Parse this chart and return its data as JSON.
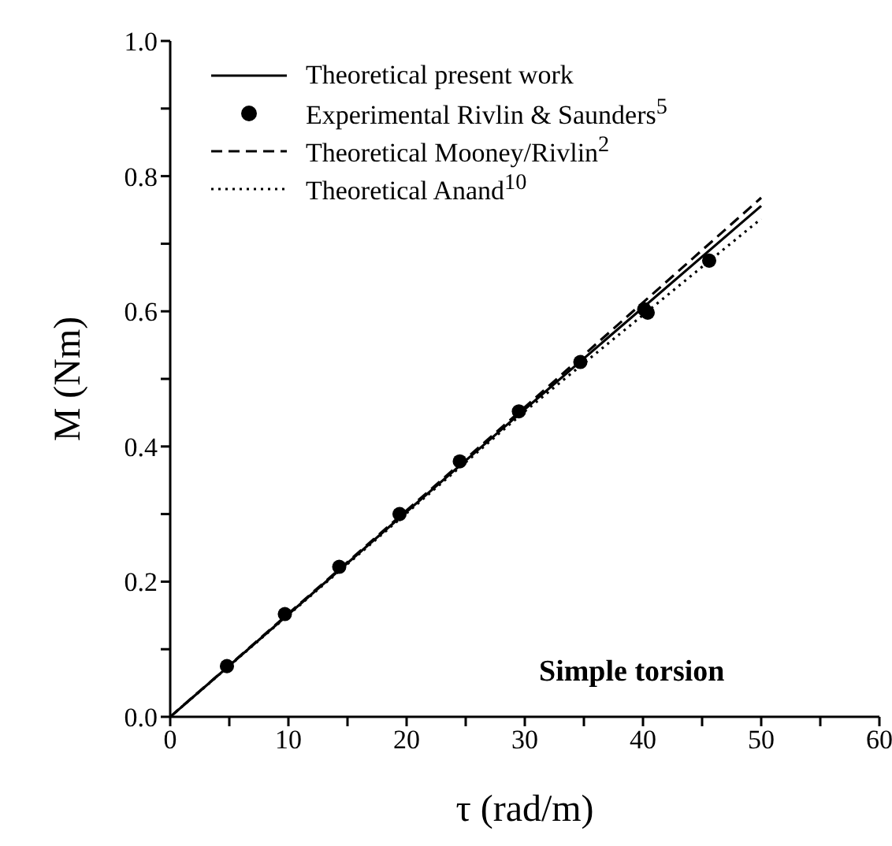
{
  "chart_data": {
    "type": "line",
    "xlabel": "τ (rad/m)",
    "ylabel": "M (Nm)",
    "annotations": [
      "Simple torsion"
    ],
    "xlim": [
      0,
      60
    ],
    "ylim": [
      0,
      1
    ],
    "xticks": [
      0,
      {
        "value": 5,
        "label": null
      },
      10,
      {
        "value": 15,
        "label": null
      },
      20,
      {
        "value": 25,
        "label": null
      },
      30,
      {
        "value": 35,
        "label": null
      },
      40,
      {
        "value": 45,
        "label": null
      },
      50,
      {
        "value": 55,
        "label": null
      },
      60
    ],
    "yticks": [
      {
        "value": 0,
        "label": "0.0"
      },
      {
        "value": 0.1,
        "label": null
      },
      {
        "value": 0.2,
        "label": "0.2"
      },
      {
        "value": 0.3,
        "label": null
      },
      {
        "value": 0.4,
        "label": "0.4"
      },
      {
        "value": 0.5,
        "label": null
      },
      {
        "value": 0.6,
        "label": "0.6"
      },
      {
        "value": 0.7,
        "label": null
      },
      {
        "value": 0.8,
        "label": "0.8"
      },
      {
        "value": 0.9,
        "label": null
      },
      {
        "value": 1.0,
        "label": "1.0"
      }
    ],
    "grid": false,
    "legend": "top left",
    "series": [
      {
        "name": "Theoretical present work",
        "color": "#000000",
        "line_style": "solid",
        "marker": "none",
        "x": [
          0,
          30,
          50
        ],
        "values": [
          0,
          0.455,
          0.756
        ]
      },
      {
        "name": "Experimental Rivlin & Saunders$^{5}$",
        "type": "scatter",
        "color": "#000000",
        "marker": "circle",
        "x": [
          4.8,
          9.7,
          14.3,
          19.4,
          24.5,
          29.5,
          34.7,
          40.1,
          40.4,
          45.6
        ],
        "values": [
          0.075,
          0.152,
          0.222,
          0.3,
          0.378,
          0.452,
          0.525,
          0.603,
          0.598,
          0.675
        ]
      },
      {
        "name": "Theoretical Mooney/Rivlin$^{2}$",
        "color": "#000000",
        "line_style": "dashed",
        "marker": "none",
        "x": [
          0,
          30,
          50
        ],
        "values": [
          0,
          0.458,
          0.768
        ]
      },
      {
        "name": "Theoretical Anand$^{10}$",
        "color": "#000000",
        "line_style": "dotted",
        "marker": "none",
        "x": [
          0,
          30,
          50
        ],
        "values": [
          0,
          0.452,
          0.737
        ]
      }
    ]
  }
}
